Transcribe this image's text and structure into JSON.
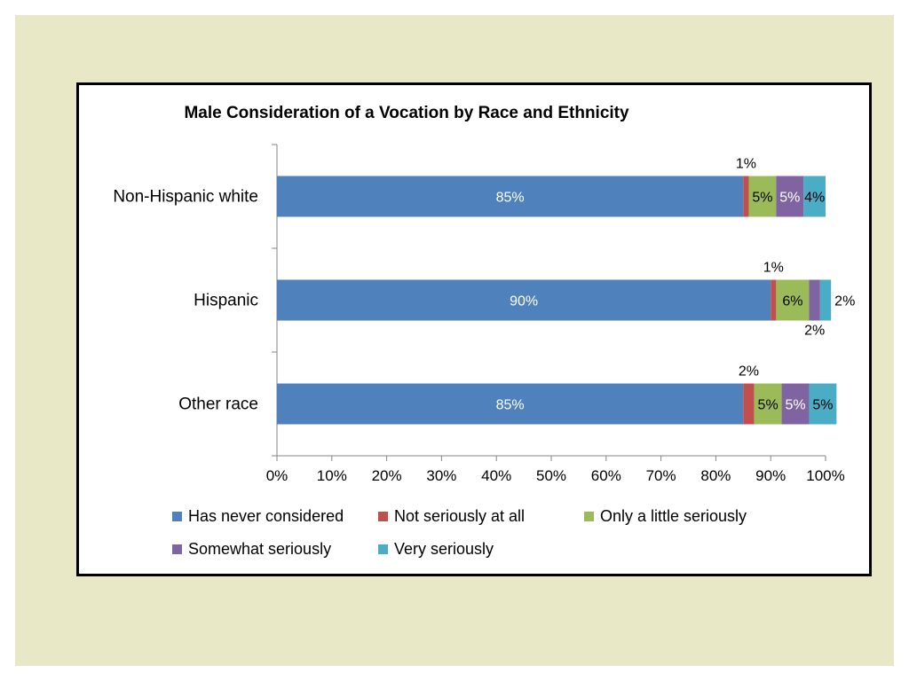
{
  "colors": {
    "slide_background": "#e9e8c6",
    "chart_background": "#ffffff",
    "frame_border": "#000000",
    "axis": "#868686"
  },
  "chart_data": {
    "type": "bar",
    "orientation": "horizontal",
    "stacked": true,
    "title": "Male Consideration of a Vocation by Race and Ethnicity",
    "categories": [
      "Non-Hispanic white",
      "Hispanic",
      "Other race"
    ],
    "series": [
      {
        "name": "Has never considered",
        "color": "#4f81bd",
        "values": [
          85,
          90,
          85
        ],
        "labels": [
          "85%",
          "90%",
          "85%"
        ],
        "label_color": "#ffffff"
      },
      {
        "name": "Not seriously at all",
        "color": "#c0504d",
        "values": [
          1,
          1,
          2
        ],
        "labels": [
          "1%",
          "1%",
          "2%"
        ],
        "label_color": "#000000"
      },
      {
        "name": "Only a little seriously",
        "color": "#9bbb59",
        "values": [
          5,
          6,
          5
        ],
        "labels": [
          "5%",
          "6%",
          "5%"
        ],
        "label_color": "#000000"
      },
      {
        "name": "Somewhat seriously",
        "color": "#8064a2",
        "values": [
          5,
          2,
          5
        ],
        "labels": [
          "5%",
          "2%",
          "5%"
        ],
        "label_color": "#ffffff"
      },
      {
        "name": "Very seriously",
        "color": "#4bacc6",
        "values": [
          4,
          2,
          5
        ],
        "labels": [
          "4%",
          "2%",
          "5%"
        ],
        "label_color": "#000000"
      }
    ],
    "xlim": [
      0,
      100
    ],
    "xticks": [
      "0%",
      "10%",
      "20%",
      "30%",
      "40%",
      "50%",
      "60%",
      "70%",
      "80%",
      "90%",
      "100%"
    ],
    "xlabel": "",
    "ylabel": "",
    "grid": false,
    "legend_position": "bottom"
  }
}
